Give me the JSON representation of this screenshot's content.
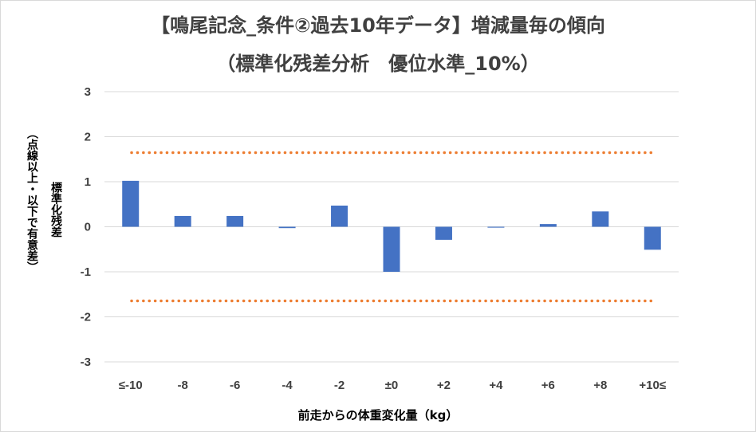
{
  "chart_data": {
    "type": "bar",
    "title": "【鳴尾記念_条件②過去10年データ】増減量毎の傾向",
    "subtitle": "（標準化残差分析　優位水準_10%）",
    "xlabel": "前走からの体重変化量（kg）",
    "ylabel": "標準化残差",
    "ylabel_note": "（点線以上・以下で有意差）",
    "categories": [
      "≤-10",
      "-8",
      "-6",
      "-4",
      "-2",
      "±0",
      "+2",
      "+4",
      "+6",
      "+8",
      "+10≤"
    ],
    "values": [
      1.02,
      0.24,
      0.24,
      -0.03,
      0.47,
      -1.0,
      -0.29,
      -0.02,
      0.06,
      0.34,
      -0.51
    ],
    "ylim": [
      -3,
      3
    ],
    "yticks": [
      "3",
      "2",
      "1",
      "0",
      "-1",
      "-2",
      "-3"
    ],
    "thresholds": [
      1.645,
      -1.645
    ],
    "grid": true,
    "colors": {
      "bar": "#4472c4",
      "threshold": "#ed7d31",
      "grid": "#d9d9d9"
    }
  }
}
